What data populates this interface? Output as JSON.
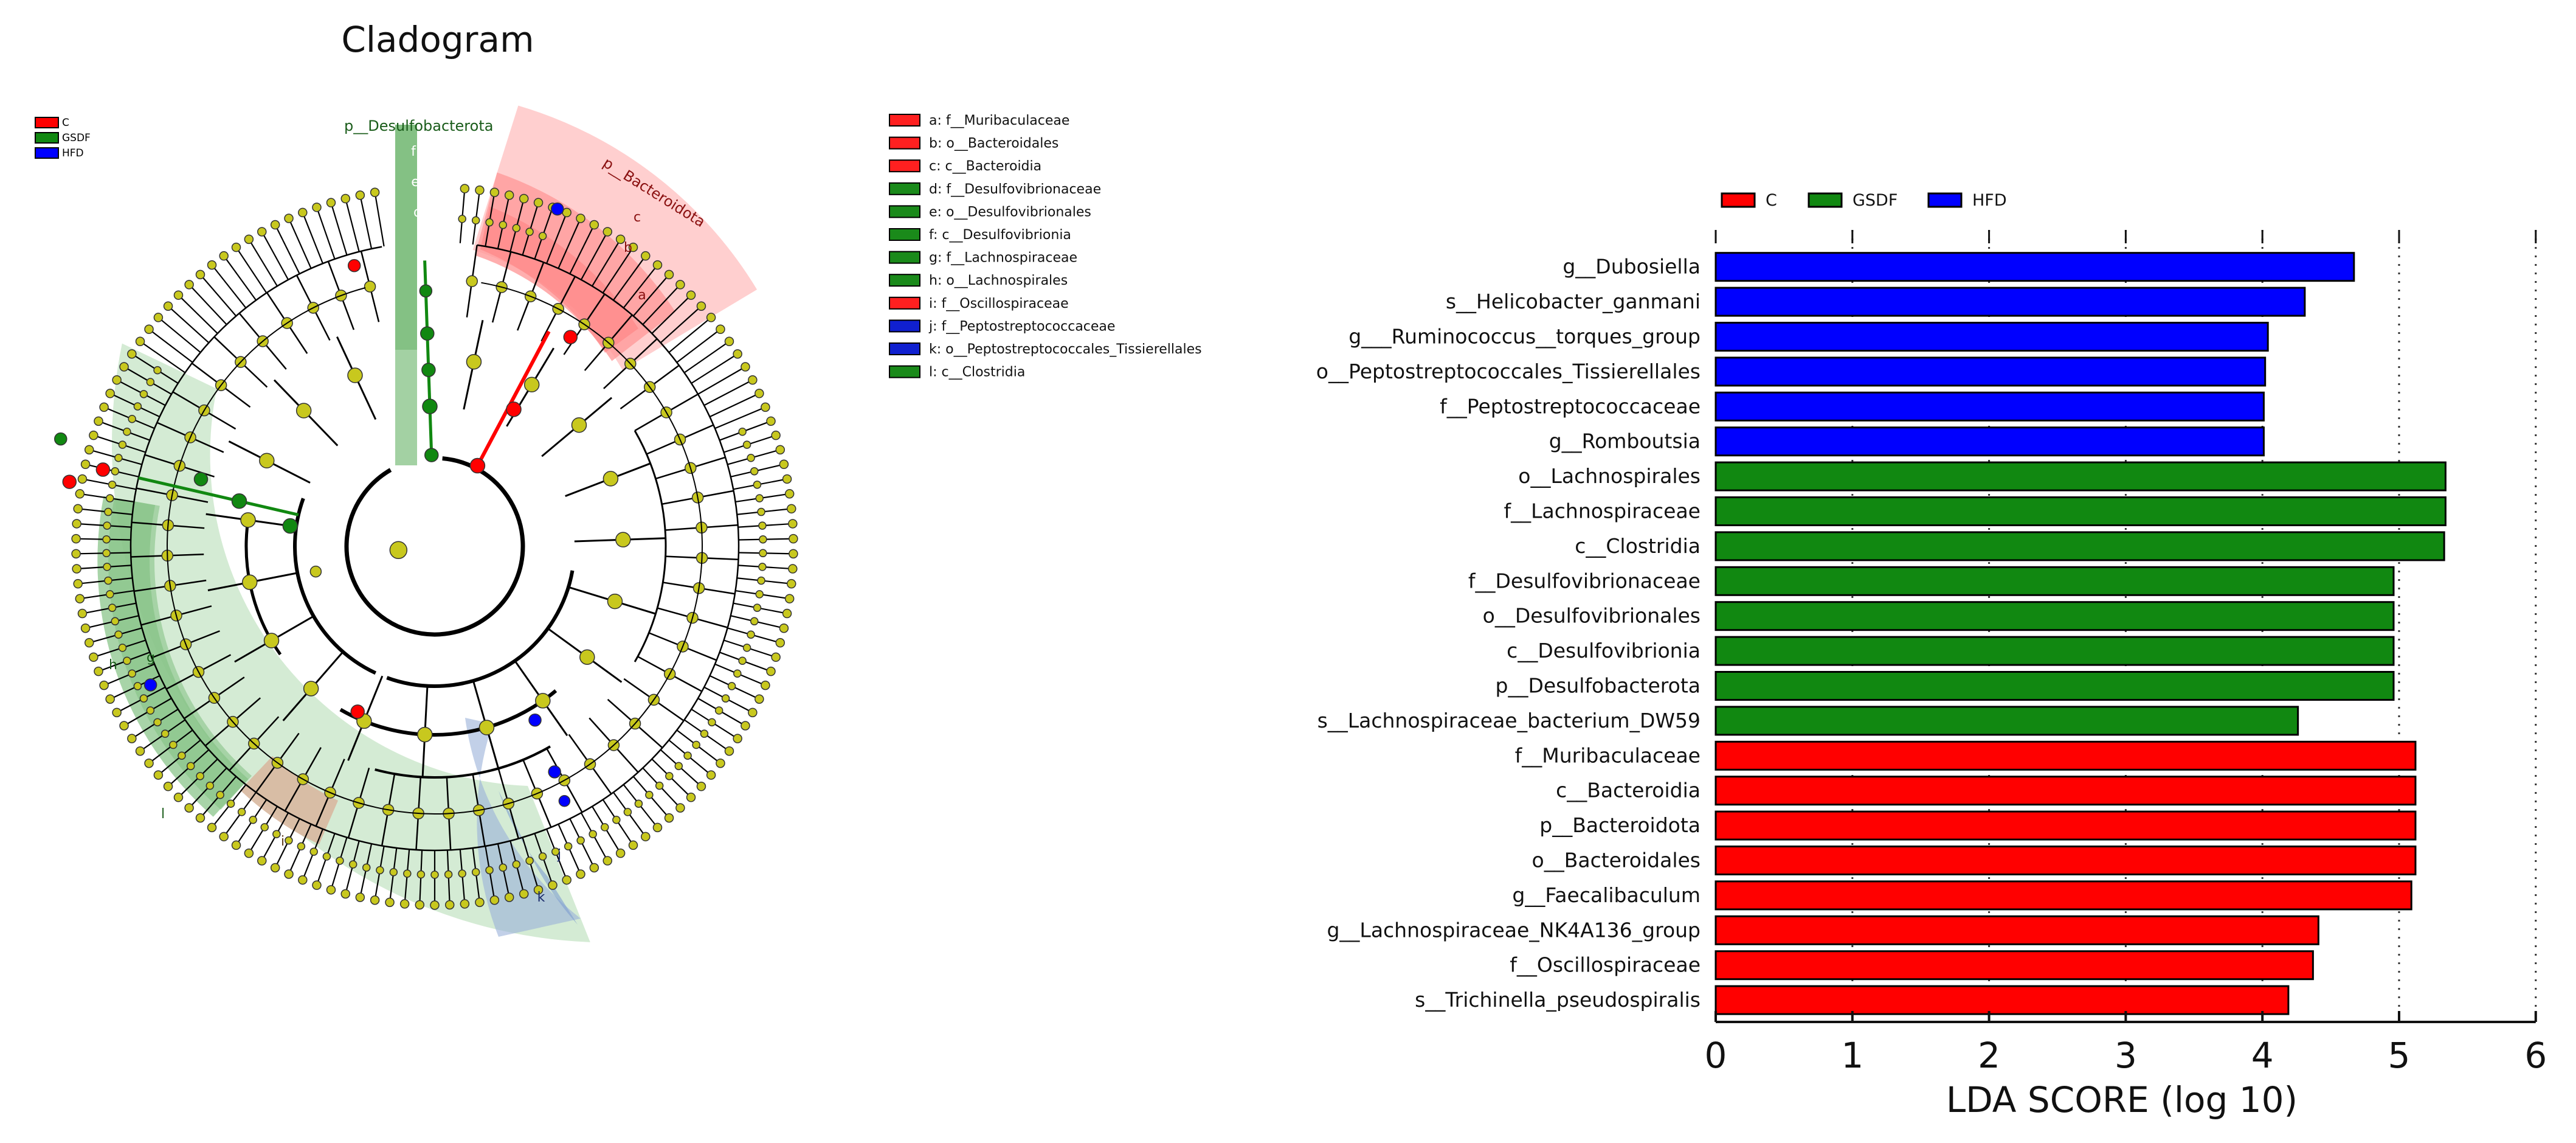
{
  "cladogram": {
    "title": "Cladogram",
    "group_legend": [
      {
        "label": "C",
        "color": "#ff0000"
      },
      {
        "label": "GSDF",
        "color": "#118811"
      },
      {
        "label": "HFD",
        "color": "#0000ff"
      }
    ],
    "key_legend": [
      {
        "label": "a: f__Muribaculaceae",
        "color": "#ff2020"
      },
      {
        "label": "b: o__Bacteroidales",
        "color": "#ff2020"
      },
      {
        "label": "c: c__Bacteroidia",
        "color": "#ff2020"
      },
      {
        "label": "d: f__Desulfovibrionaceae",
        "color": "#1a8a1a"
      },
      {
        "label": "e: o__Desulfovibrionales",
        "color": "#1a8a1a"
      },
      {
        "label": "f: c__Desulfovibrionia",
        "color": "#1a8a1a"
      },
      {
        "label": "g: f__Lachnospiraceae",
        "color": "#1a8a1a"
      },
      {
        "label": "h: o__Lachnospirales",
        "color": "#1a8a1a"
      },
      {
        "label": "i: f__Oscillospiraceae",
        "color": "#ff2020"
      },
      {
        "label": "j: f__Peptostreptococcaceae",
        "color": "#1020d0"
      },
      {
        "label": "k: o__Peptostreptococcales_Tissierellales",
        "color": "#1020d0"
      },
      {
        "label": "l: c__Clostridia",
        "color": "#1a8a1a"
      }
    ],
    "clade_labels": {
      "desulfobacterota": "p__Desulfobacterota",
      "bacteroidota": "p__Bacteroidota",
      "f": "f",
      "e": "e",
      "d": "d",
      "c": "c",
      "b": "b",
      "a": "a",
      "h": "h",
      "g": "g",
      "l": "l",
      "i": "i",
      "k": "k",
      "j": "j"
    },
    "colors": {
      "node": "#c8c81e",
      "c": "#ff0000",
      "gsdf": "#118811",
      "hfd": "#0000ff"
    }
  },
  "chart_data": {
    "type": "bar",
    "orientation": "horizontal",
    "xlabel": "LDA SCORE (log 10)",
    "xlim": [
      0,
      6
    ],
    "xticks": [
      0,
      1,
      2,
      3,
      4,
      5,
      6
    ],
    "legend": [
      {
        "label": "C",
        "color": "#ff0000"
      },
      {
        "label": "GSDF",
        "color": "#118811"
      },
      {
        "label": "HFD",
        "color": "#0000ff"
      }
    ],
    "legend_position": "top-left",
    "categories": [
      "g__Dubosiella",
      "s__Helicobacter_ganmani",
      "g___Ruminococcus__torques_group",
      "o__Peptostreptococcales_Tissierellales",
      "f__Peptostreptococcaceae",
      "g__Romboutsia",
      "o__Lachnospirales",
      "f__Lachnospiraceae",
      "c__Clostridia",
      "f__Desulfovibrionaceae",
      "o__Desulfovibrionales",
      "c__Desulfovibrionia",
      "p__Desulfobacterota",
      "s__Lachnospiraceae_bacterium_DW59",
      "f__Muribaculaceae",
      "c__Bacteroidia",
      "p__Bacteroidota",
      "o__Bacteroidales",
      "g__Faecalibaculum",
      "g__Lachnospiraceae_NK4A136_group",
      "f__Oscillospiraceae",
      "s__Trichinella_pseudospiralis"
    ],
    "values": [
      4.67,
      4.31,
      4.04,
      4.02,
      4.01,
      4.01,
      5.34,
      5.34,
      5.33,
      4.96,
      4.96,
      4.96,
      4.96,
      4.26,
      5.12,
      5.12,
      5.12,
      5.12,
      5.09,
      4.41,
      4.37,
      4.19
    ],
    "groups": [
      "HFD",
      "HFD",
      "HFD",
      "HFD",
      "HFD",
      "HFD",
      "GSDF",
      "GSDF",
      "GSDF",
      "GSDF",
      "GSDF",
      "GSDF",
      "GSDF",
      "GSDF",
      "C",
      "C",
      "C",
      "C",
      "C",
      "C",
      "C",
      "C"
    ]
  }
}
